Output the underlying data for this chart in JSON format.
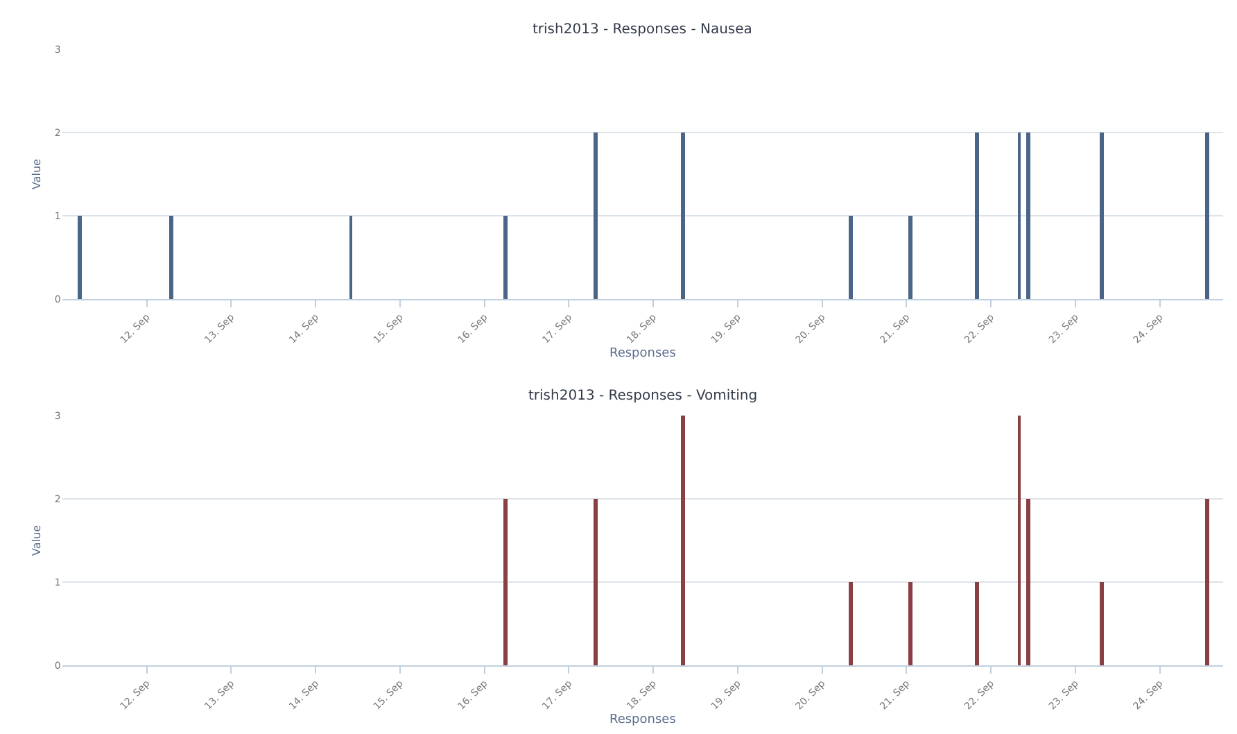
{
  "chart_data": [
    {
      "type": "bar",
      "title": "trish2013 - Responses - Nausea",
      "xlabel": "Responses",
      "ylabel": "Value",
      "x": [
        "--09-11T05:00",
        "--09-12T07:00",
        "--09-14T10:00",
        "--09-16T06:00",
        "--09-17T07:30",
        "--09-18T08:30",
        "--09-20T08:00",
        "--09-21T01:00",
        "--09-21T20:00",
        "--09-22T08:00",
        "--09-22T10:30",
        "--09-23T07:30",
        "--09-24T13:30"
      ],
      "series": [
        {
          "color": "#4a6588",
          "values": [
            1,
            1,
            1,
            1,
            2,
            2,
            1,
            1,
            2,
            2,
            2,
            2,
            2
          ]
        }
      ],
      "grid": "y",
      "xlim": [
        "--09-11T00:00",
        "--09-24T18:00"
      ],
      "ylim": [
        0,
        3
      ],
      "yticks": [
        0,
        1,
        2,
        3
      ],
      "xticks": [
        {
          "value": "--09-12",
          "label": "12. Sep"
        },
        {
          "value": "--09-13",
          "label": "13. Sep"
        },
        {
          "value": "--09-14",
          "label": "14. Sep"
        },
        {
          "value": "--09-15",
          "label": "15. Sep"
        },
        {
          "value": "--09-16",
          "label": "16. Sep"
        },
        {
          "value": "--09-17",
          "label": "17. Sep"
        },
        {
          "value": "--09-18",
          "label": "18. Sep"
        },
        {
          "value": "--09-19",
          "label": "19. Sep"
        },
        {
          "value": "--09-20",
          "label": "20. Sep"
        },
        {
          "value": "--09-21",
          "label": "21. Sep"
        },
        {
          "value": "--09-22",
          "label": "22. Sep"
        },
        {
          "value": "--09-23",
          "label": "23. Sep"
        },
        {
          "value": "--09-24",
          "label": "24. Sep"
        }
      ],
      "tick_labels": "xy"
    },
    {
      "type": "bar",
      "title": "trish2013 - Responses - Vomiting",
      "xlabel": "Responses",
      "ylabel": "Value",
      "x": [
        "--09-11T05:00",
        "--09-12T07:00",
        "--09-14T10:00",
        "--09-16T06:00",
        "--09-17T07:30",
        "--09-18T08:30",
        "--09-20T08:00",
        "--09-21T01:00",
        "--09-21T20:00",
        "--09-22T08:00",
        "--09-22T10:30",
        "--09-23T07:30",
        "--09-24T13:30"
      ],
      "series": [
        {
          "color": "#8a3f42",
          "values": [
            0,
            0,
            0,
            2,
            2,
            3,
            1,
            1,
            1,
            3,
            2,
            1,
            2
          ]
        }
      ],
      "grid": "y",
      "xlim": [
        "--09-11T00:00",
        "--09-24T18:00"
      ],
      "ylim": [
        0,
        3
      ],
      "yticks": [
        0,
        1,
        2,
        3
      ],
      "xticks": [
        {
          "value": "--09-12",
          "label": "12. Sep"
        },
        {
          "value": "--09-13",
          "label": "13. Sep"
        },
        {
          "value": "--09-14",
          "label": "14. Sep"
        },
        {
          "value": "--09-15",
          "label": "15. Sep"
        },
        {
          "value": "--09-16",
          "label": "16. Sep"
        },
        {
          "value": "--09-17",
          "label": "17. Sep"
        },
        {
          "value": "--09-18",
          "label": "18. Sep"
        },
        {
          "value": "--09-19",
          "label": "19. Sep"
        },
        {
          "value": "--09-20",
          "label": "20. Sep"
        },
        {
          "value": "--09-21",
          "label": "21. Sep"
        },
        {
          "value": "--09-22",
          "label": "22. Sep"
        },
        {
          "value": "--09-23",
          "label": "23. Sep"
        },
        {
          "value": "--09-24",
          "label": "24. Sep"
        }
      ],
      "tick_labels": "xy"
    }
  ]
}
